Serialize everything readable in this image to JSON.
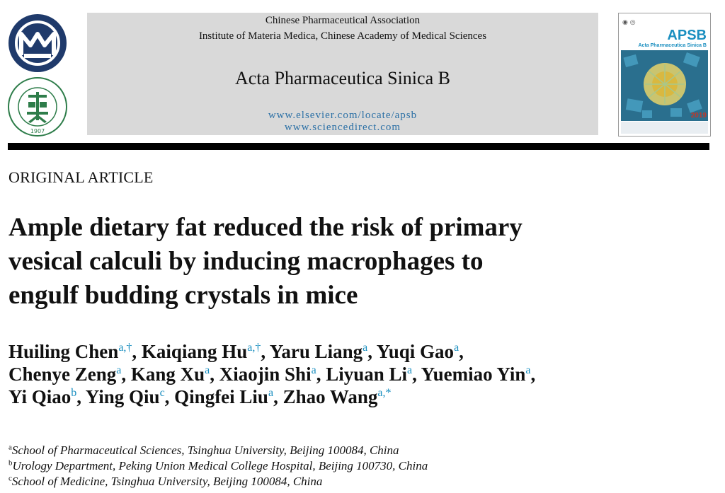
{
  "header": {
    "association": "Chinese Pharmaceutical Association",
    "institute": "Institute of Materia Medica, Chinese Academy of Medical Sciences",
    "journal": "Acta Pharmaceutica Sinica B",
    "url1": "www.elsevier.com/locate/apsb",
    "url2": "www.sciencedirect.com",
    "cpa_logo_year": "1907",
    "cover": {
      "brand": "APSB",
      "subtitle": "Acta Pharmaceutica Sinica B",
      "year": "2019"
    },
    "colors": {
      "accent": "#1b8fc0",
      "band": "#d9d9d9",
      "logo_navy": "#1f3a6b",
      "logo_green": "#2e7d4a"
    }
  },
  "article": {
    "type": "ORIGINAL ARTICLE",
    "title_lines": [
      "Ample dietary fat reduced the risk of primary",
      "vesical calculi by inducing macrophages to",
      "engulf budding crystals in mice"
    ],
    "authors": [
      {
        "name": "Huiling Chen",
        "sup": "a,†",
        "sep": ", "
      },
      {
        "name": "Kaiqiang Hu",
        "sup": "a,†",
        "sep": ", "
      },
      {
        "name": "Yaru Liang",
        "sup": "a",
        "sep": ", "
      },
      {
        "name": "Yuqi Gao",
        "sup": "a",
        "sep": ","
      },
      {
        "name": "Chenye Zeng",
        "sup": "a",
        "sep": ", "
      },
      {
        "name": "Kang Xu",
        "sup": "a",
        "sep": ", "
      },
      {
        "name": "Xiaojin Shi",
        "sup": "a",
        "sep": ", "
      },
      {
        "name": "Liyuan Li",
        "sup": "a",
        "sep": ", "
      },
      {
        "name": "Yuemiao Yin",
        "sup": "a",
        "sep": ","
      },
      {
        "name": "Yi Qiao",
        "sup": "b",
        "sep": ", "
      },
      {
        "name": "Ying Qiu",
        "sup": "c",
        "sep": ", "
      },
      {
        "name": "Qingfei Liu",
        "sup": "a",
        "sep": ", "
      },
      {
        "name": "Zhao Wang",
        "sup": "a,*",
        "sep": ""
      }
    ],
    "affiliations": [
      {
        "mark": "a",
        "text": "School of Pharmaceutical Sciences, Tsinghua University, Beijing 100084, China"
      },
      {
        "mark": "b",
        "text": "Urology Department, Peking Union Medical College Hospital, Beijing 100730, China"
      },
      {
        "mark": "c",
        "text": "School of Medicine, Tsinghua University, Beijing 100084, China"
      }
    ]
  }
}
